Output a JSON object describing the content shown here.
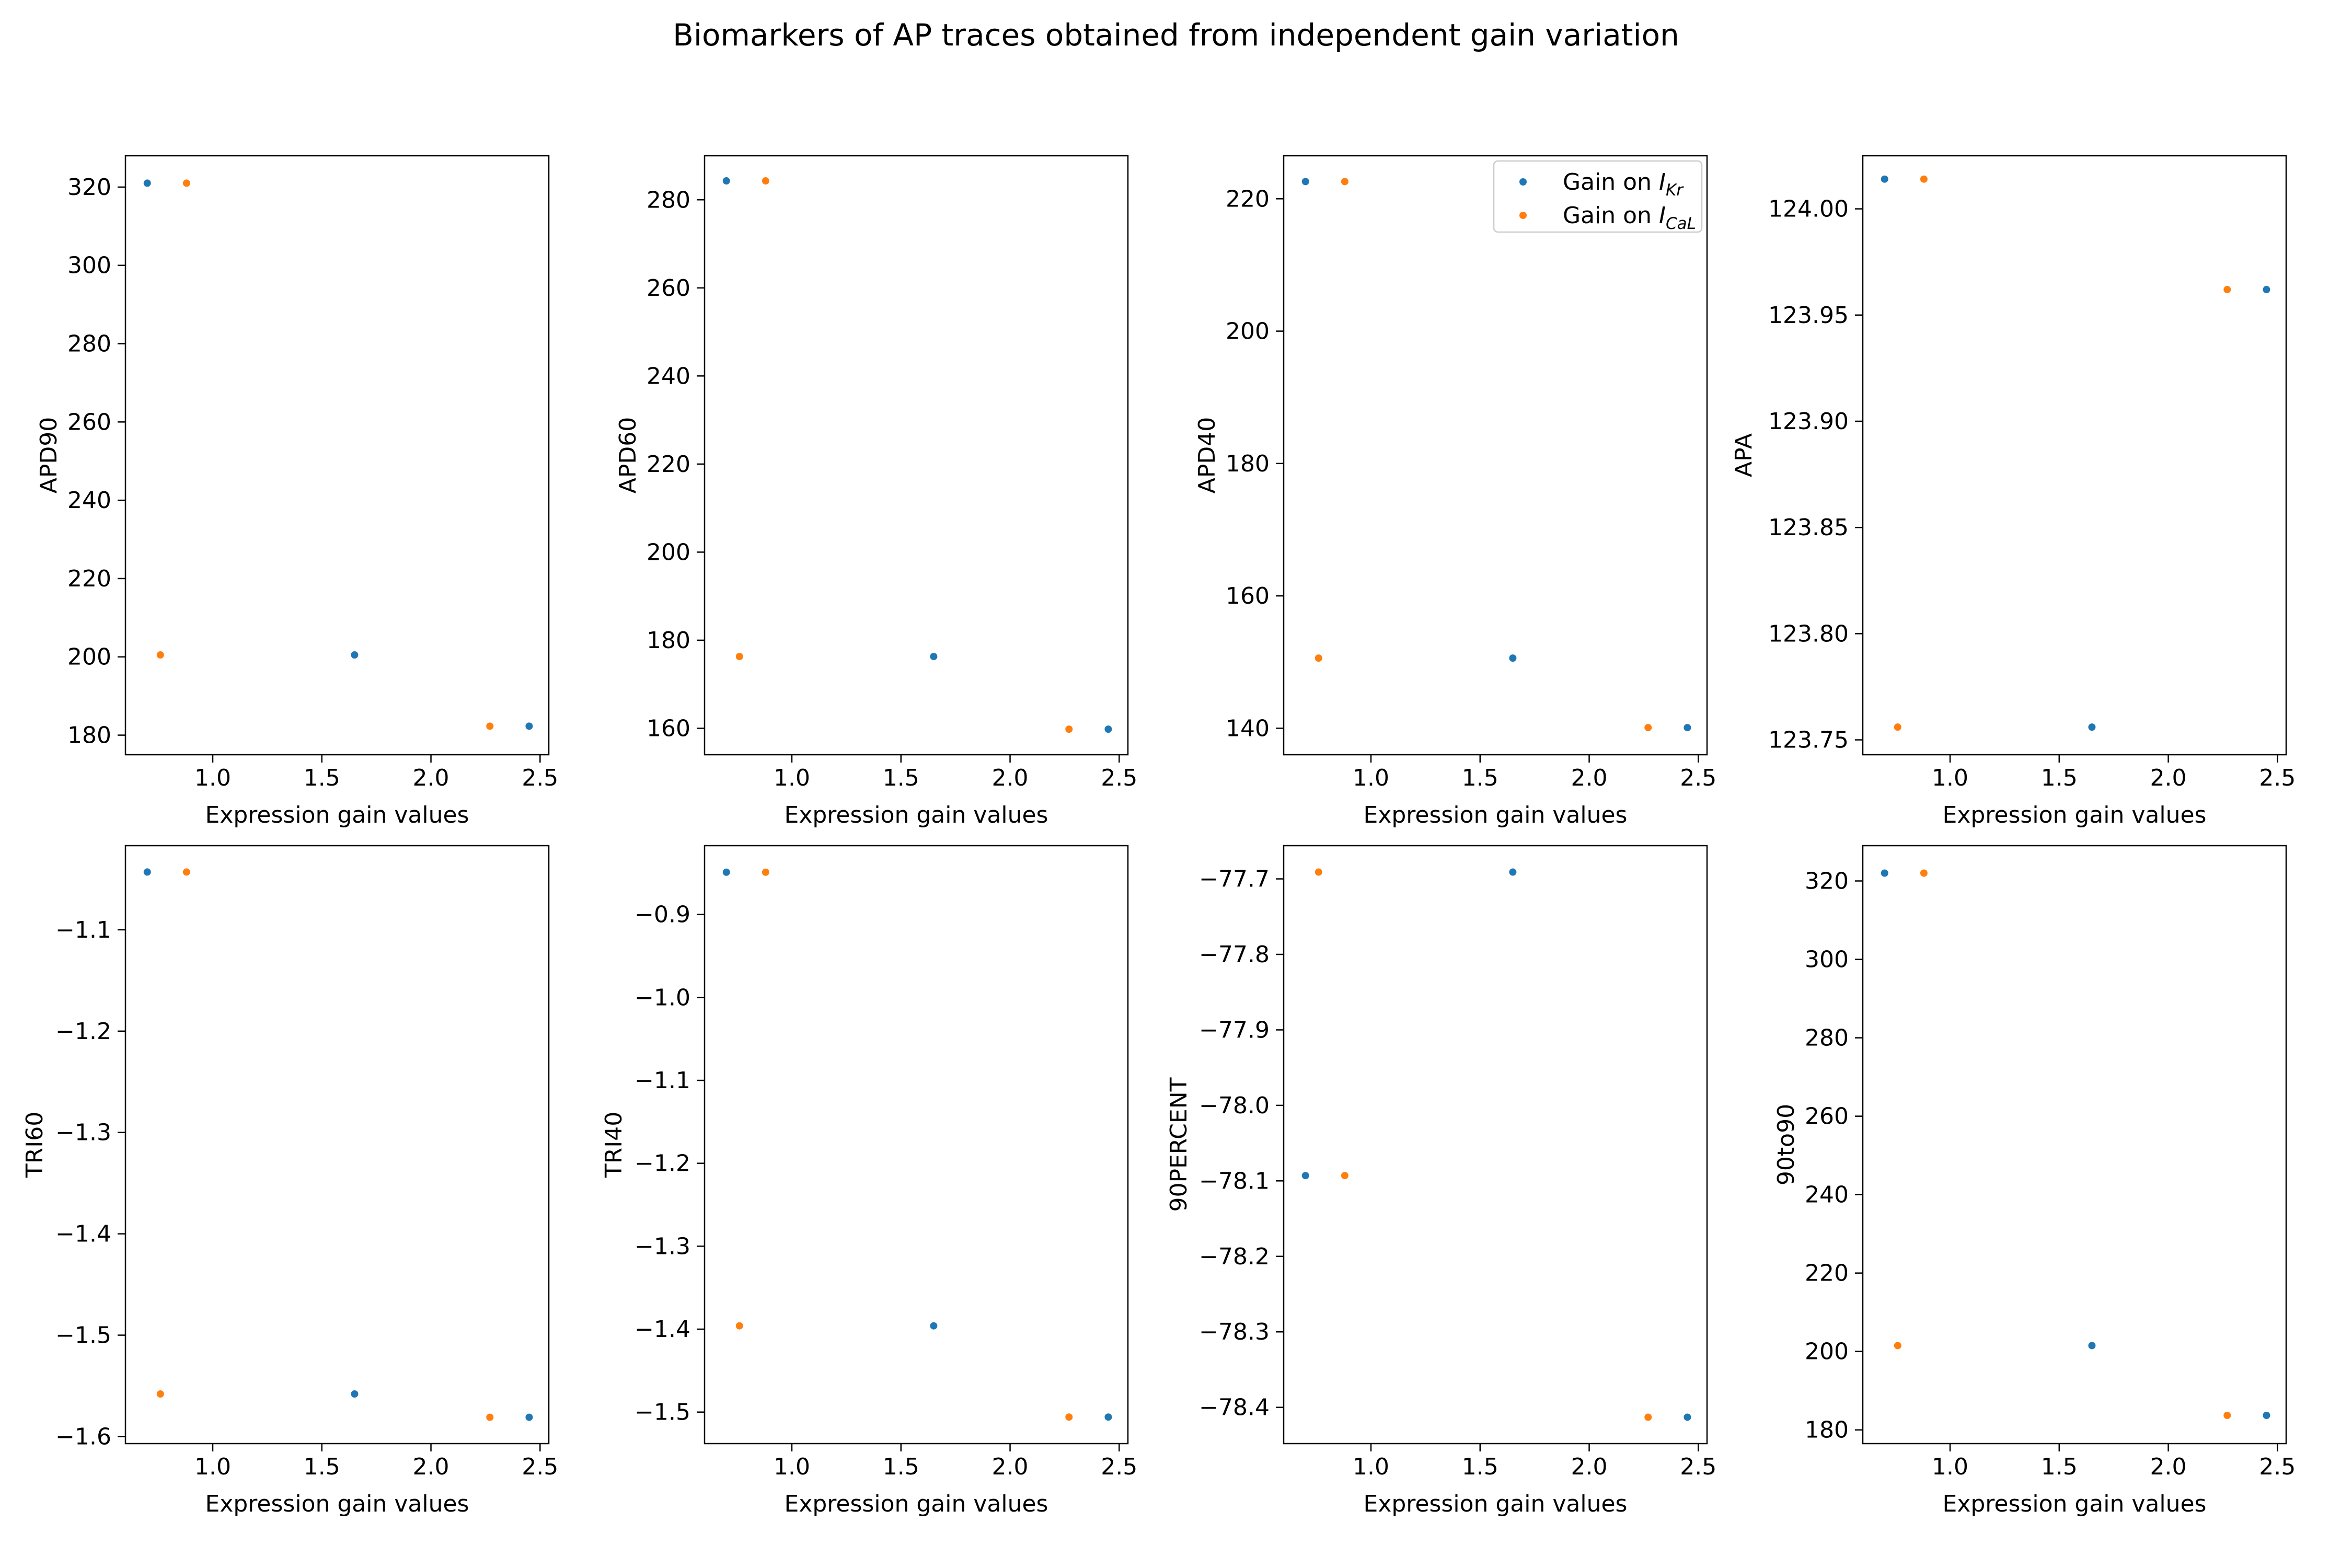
{
  "figure": {
    "title": "Biomarkers of AP traces obtained from independent gain variation"
  },
  "colors": {
    "series_ikr": "#1f77b4",
    "series_ical": "#ff7f0e",
    "axes": "#000000",
    "background": "#ffffff"
  },
  "legend": {
    "location": "upper right of APD40 panel",
    "entries": [
      {
        "prefix": "Gain on ",
        "symbol": "I",
        "subscript": "Kr",
        "color": "#1f77b4"
      },
      {
        "prefix": "Gain on ",
        "symbol": "I",
        "subscript": "CaL",
        "color": "#ff7f0e"
      }
    ]
  },
  "chart_data": [
    {
      "type": "scatter",
      "xlabel": "Expression gain values",
      "ylabel": "APD90",
      "xlim": [
        0.6,
        2.54
      ],
      "ylim": [
        175,
        328
      ],
      "xticks": [
        1.0,
        1.5,
        2.0,
        2.5
      ],
      "xtick_labels": [
        "1.0",
        "1.5",
        "2.0",
        "2.5"
      ],
      "yticks": [
        180,
        200,
        220,
        240,
        260,
        280,
        300,
        320
      ],
      "ytick_labels": [
        "180",
        "200",
        "220",
        "240",
        "260",
        "280",
        "300",
        "320"
      ],
      "series": [
        {
          "name": "Gain on I_Kr",
          "color": "#1f77b4",
          "x": [
            0.7,
            1.65,
            2.45
          ],
          "y": [
            321,
            200.5,
            182.3
          ]
        },
        {
          "name": "Gain on I_CaL",
          "color": "#ff7f0e",
          "x": [
            0.76,
            0.88,
            2.27
          ],
          "y": [
            200.5,
            321,
            182.3
          ]
        }
      ]
    },
    {
      "type": "scatter",
      "xlabel": "Expression gain values",
      "ylabel": "APD60",
      "xlim": [
        0.6,
        2.54
      ],
      "ylim": [
        154,
        290
      ],
      "xticks": [
        1.0,
        1.5,
        2.0,
        2.5
      ],
      "xtick_labels": [
        "1.0",
        "1.5",
        "2.0",
        "2.5"
      ],
      "yticks": [
        160,
        180,
        200,
        220,
        240,
        260,
        280
      ],
      "ytick_labels": [
        "160",
        "180",
        "200",
        "220",
        "240",
        "260",
        "280"
      ],
      "series": [
        {
          "name": "Gain on I_Kr",
          "color": "#1f77b4",
          "x": [
            0.7,
            1.65,
            2.45
          ],
          "y": [
            284.3,
            176.3,
            159.8
          ]
        },
        {
          "name": "Gain on I_CaL",
          "color": "#ff7f0e",
          "x": [
            0.76,
            0.88,
            2.27
          ],
          "y": [
            176.3,
            284.3,
            159.8
          ]
        }
      ]
    },
    {
      "type": "scatter",
      "xlabel": "Expression gain values",
      "ylabel": "APD40",
      "xlim": [
        0.6,
        2.54
      ],
      "ylim": [
        136,
        226.5
      ],
      "xticks": [
        1.0,
        1.5,
        2.0,
        2.5
      ],
      "xtick_labels": [
        "1.0",
        "1.5",
        "2.0",
        "2.5"
      ],
      "yticks": [
        140,
        160,
        180,
        200,
        220
      ],
      "ytick_labels": [
        "140",
        "160",
        "180",
        "200",
        "220"
      ],
      "series": [
        {
          "name": "Gain on I_Kr",
          "color": "#1f77b4",
          "x": [
            0.7,
            1.65,
            2.45
          ],
          "y": [
            222.6,
            150.6,
            140.1
          ]
        },
        {
          "name": "Gain on I_CaL",
          "color": "#ff7f0e",
          "x": [
            0.76,
            0.88,
            2.27
          ],
          "y": [
            150.6,
            222.6,
            140.1
          ]
        }
      ]
    },
    {
      "type": "scatter",
      "xlabel": "Expression gain values",
      "ylabel": "APA",
      "xlim": [
        0.6,
        2.54
      ],
      "ylim": [
        123.743,
        124.025
      ],
      "xticks": [
        1.0,
        1.5,
        2.0,
        2.5
      ],
      "xtick_labels": [
        "1.0",
        "1.5",
        "2.0",
        "2.5"
      ],
      "yticks": [
        123.75,
        123.8,
        123.85,
        123.9,
        123.95,
        124.0
      ],
      "ytick_labels": [
        "123.75",
        "123.80",
        "123.85",
        "123.90",
        "123.95",
        "124.00"
      ],
      "series": [
        {
          "name": "Gain on I_Kr",
          "color": "#1f77b4",
          "x": [
            0.7,
            1.65,
            2.45
          ],
          "y": [
            124.014,
            123.756,
            123.962
          ]
        },
        {
          "name": "Gain on I_CaL",
          "color": "#ff7f0e",
          "x": [
            0.76,
            0.88,
            2.27
          ],
          "y": [
            123.756,
            124.014,
            123.962
          ]
        }
      ]
    },
    {
      "type": "scatter",
      "xlabel": "Expression gain values",
      "ylabel": "TRI60",
      "xlim": [
        0.6,
        2.54
      ],
      "ylim": [
        -1.607,
        -1.017
      ],
      "xticks": [
        1.0,
        1.5,
        2.0,
        2.5
      ],
      "xtick_labels": [
        "1.0",
        "1.5",
        "2.0",
        "2.5"
      ],
      "yticks": [
        -1.6,
        -1.5,
        -1.4,
        -1.3,
        -1.2,
        -1.1
      ],
      "ytick_labels": [
        "−1.6",
        "−1.5",
        "−1.4",
        "−1.3",
        "−1.2",
        "−1.1"
      ],
      "series": [
        {
          "name": "Gain on I_Kr",
          "color": "#1f77b4",
          "x": [
            0.7,
            1.65,
            2.45
          ],
          "y": [
            -1.043,
            -1.558,
            -1.581
          ]
        },
        {
          "name": "Gain on I_CaL",
          "color": "#ff7f0e",
          "x": [
            0.76,
            0.88,
            2.27
          ],
          "y": [
            -1.558,
            -1.043,
            -1.581
          ]
        }
      ]
    },
    {
      "type": "scatter",
      "xlabel": "Expression gain values",
      "ylabel": "TRI40",
      "xlim": [
        0.6,
        2.54
      ],
      "ylim": [
        -1.538,
        -0.817
      ],
      "xticks": [
        1.0,
        1.5,
        2.0,
        2.5
      ],
      "xtick_labels": [
        "1.0",
        "1.5",
        "2.0",
        "2.5"
      ],
      "yticks": [
        -1.5,
        -1.4,
        -1.3,
        -1.2,
        -1.1,
        -1.0,
        -0.9
      ],
      "ytick_labels": [
        "−1.5",
        "−1.4",
        "−1.3",
        "−1.2",
        "−1.1",
        "−1.0",
        "−0.9"
      ],
      "series": [
        {
          "name": "Gain on I_Kr",
          "color": "#1f77b4",
          "x": [
            0.7,
            1.65,
            2.45
          ],
          "y": [
            -0.849,
            -1.396,
            -1.506
          ]
        },
        {
          "name": "Gain on I_CaL",
          "color": "#ff7f0e",
          "x": [
            0.76,
            0.88,
            2.27
          ],
          "y": [
            -1.396,
            -0.849,
            -1.506
          ]
        }
      ]
    },
    {
      "type": "scatter",
      "xlabel": "Expression gain values",
      "ylabel": "90PERCENT",
      "xlim": [
        0.6,
        2.54
      ],
      "ylim": [
        -78.448,
        -77.656
      ],
      "xticks": [
        1.0,
        1.5,
        2.0,
        2.5
      ],
      "xtick_labels": [
        "1.0",
        "1.5",
        "2.0",
        "2.5"
      ],
      "yticks": [
        -78.4,
        -78.3,
        -78.2,
        -78.1,
        -78.0,
        -77.9,
        -77.8,
        -77.7
      ],
      "ytick_labels": [
        "−78.4",
        "−78.3",
        "−78.2",
        "−78.1",
        "−78.0",
        "−77.9",
        "−77.8",
        "−77.7"
      ],
      "series": [
        {
          "name": "Gain on I_Kr",
          "color": "#1f77b4",
          "x": [
            0.7,
            1.65,
            2.45
          ],
          "y": [
            -78.093,
            -77.691,
            -78.413
          ]
        },
        {
          "name": "Gain on I_CaL",
          "color": "#ff7f0e",
          "x": [
            0.76,
            0.88,
            2.27
          ],
          "y": [
            -77.691,
            -78.093,
            -78.413
          ]
        }
      ]
    },
    {
      "type": "scatter",
      "xlabel": "Expression gain values",
      "ylabel": "90to90",
      "xlim": [
        0.6,
        2.54
      ],
      "ylim": [
        176.5,
        329
      ],
      "xticks": [
        1.0,
        1.5,
        2.0,
        2.5
      ],
      "xtick_labels": [
        "1.0",
        "1.5",
        "2.0",
        "2.5"
      ],
      "yticks": [
        180,
        200,
        220,
        240,
        260,
        280,
        300,
        320
      ],
      "ytick_labels": [
        "180",
        "200",
        "220",
        "240",
        "260",
        "280",
        "300",
        "320"
      ],
      "series": [
        {
          "name": "Gain on I_Kr",
          "color": "#1f77b4",
          "x": [
            0.7,
            1.65,
            2.45
          ],
          "y": [
            322,
            201.5,
            183.7
          ]
        },
        {
          "name": "Gain on I_CaL",
          "color": "#ff7f0e",
          "x": [
            0.76,
            0.88,
            2.27
          ],
          "y": [
            201.5,
            322,
            183.7
          ]
        }
      ]
    }
  ]
}
